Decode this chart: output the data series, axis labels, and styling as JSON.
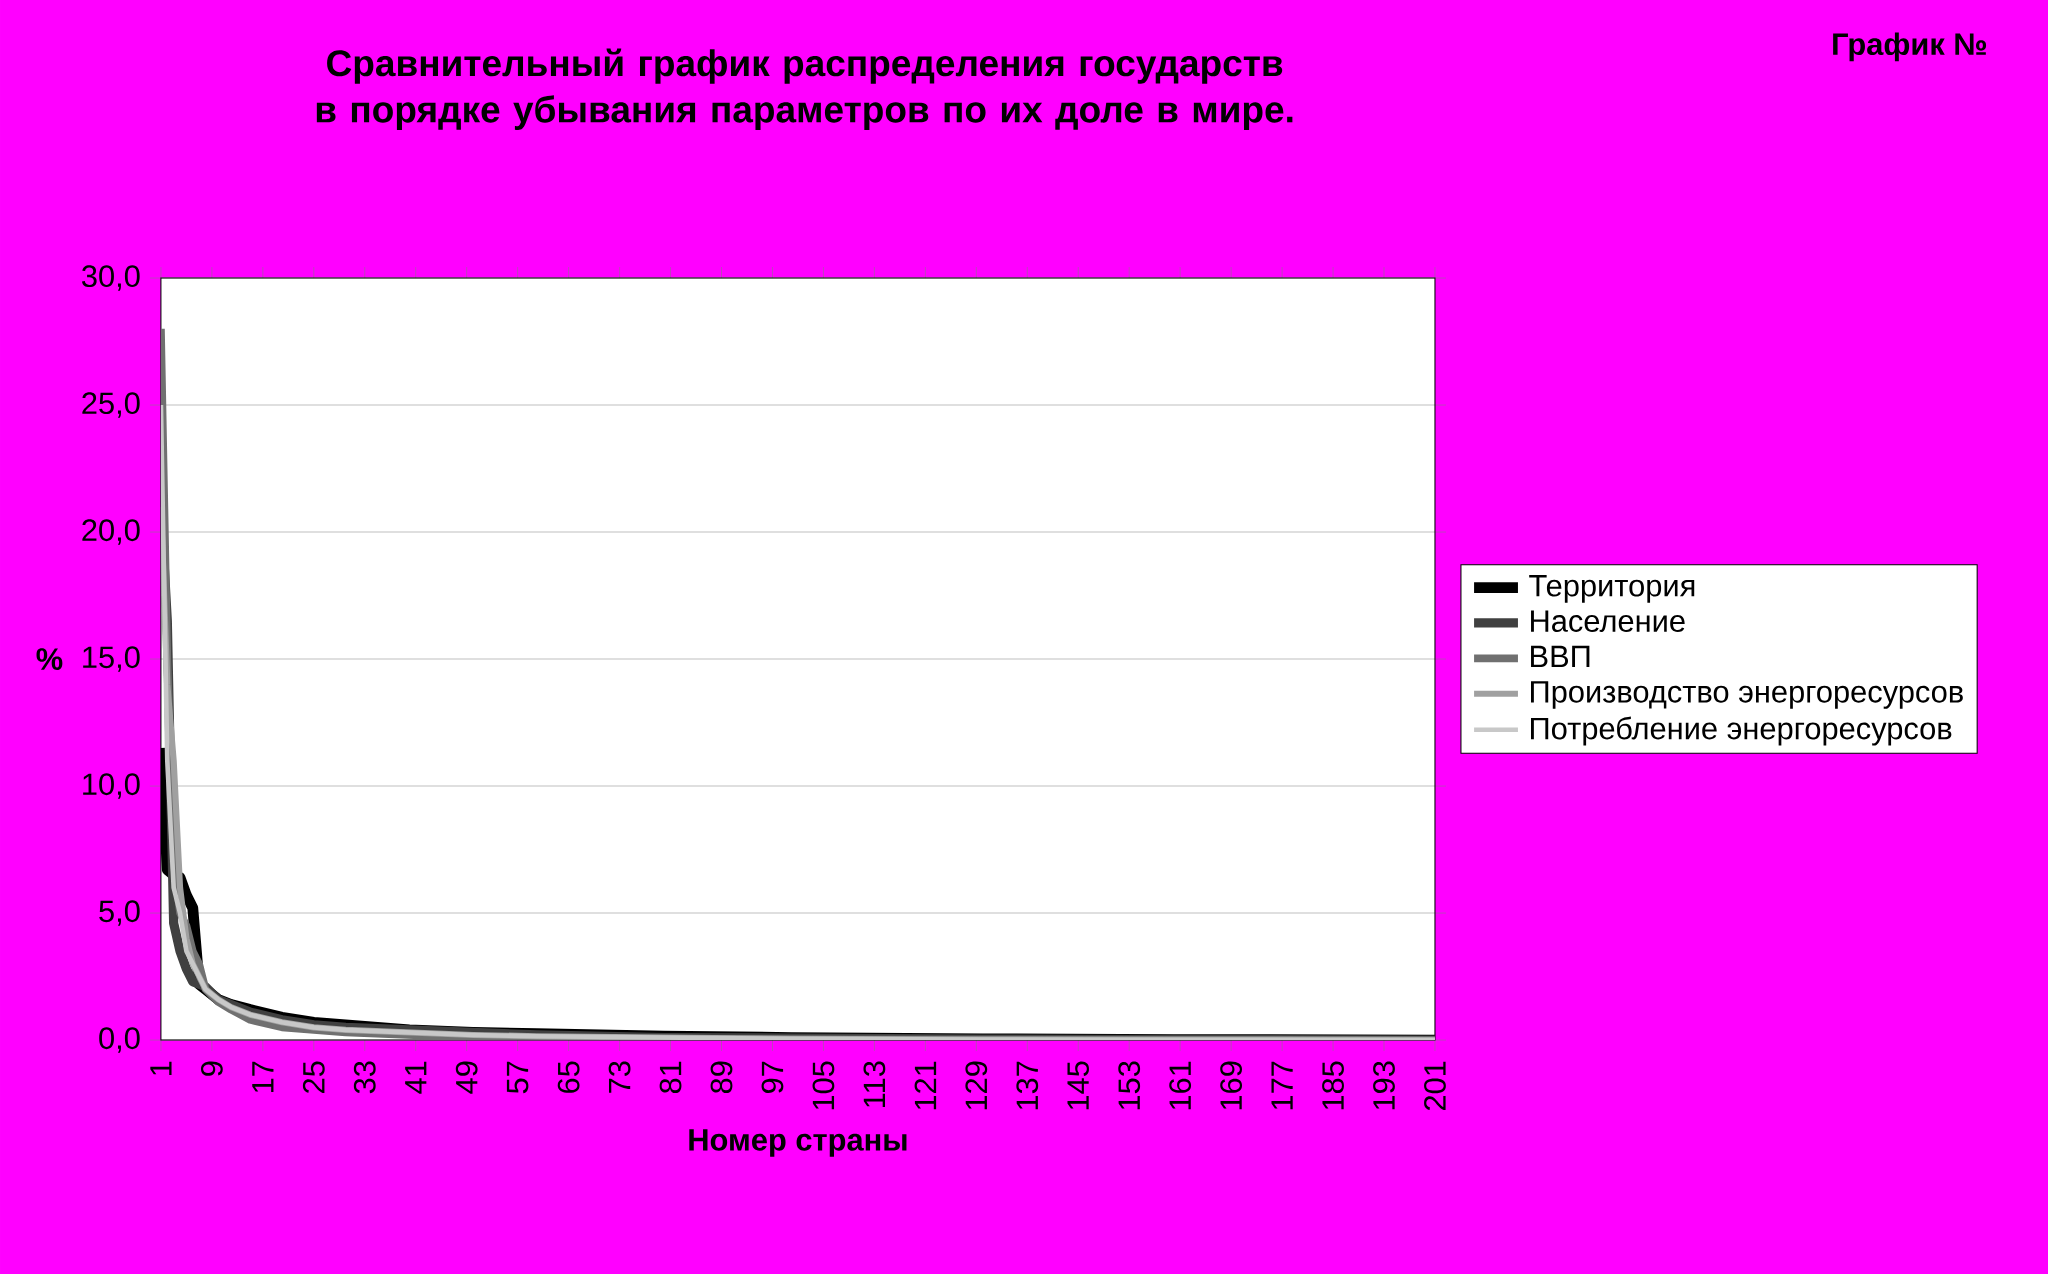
{
  "chart_data": {
    "type": "line",
    "title": "Сравнительный график распределения государств в порядке убывания параметров по их доле в мире.",
    "annotations": [
      "График №"
    ],
    "xlabel": "Номер страны",
    "ylabel": "%",
    "xlim": [
      1,
      201
    ],
    "xticks": [
      1,
      9,
      17,
      25,
      33,
      41,
      49,
      57,
      65,
      73,
      81,
      89,
      97,
      105,
      113,
      121,
      129,
      137,
      145,
      153,
      161,
      169,
      177,
      185,
      193,
      201
    ],
    "ylim": [
      0,
      30
    ],
    "yticks": [
      {
        "value": 0,
        "label": "0,0"
      },
      {
        "value": 5,
        "label": "5,0"
      },
      {
        "value": 10,
        "label": "10,0"
      },
      {
        "value": 15,
        "label": "15,0"
      },
      {
        "value": 20,
        "label": "20,0"
      },
      {
        "value": 25,
        "label": "25,0"
      },
      {
        "value": 30,
        "label": "30,0"
      }
    ],
    "grid": "y",
    "legend": "right",
    "marker": "none",
    "line_style": "solid",
    "x": [
      1,
      2,
      3,
      4,
      5,
      6,
      7,
      8,
      10,
      12,
      15,
      20,
      25,
      30,
      40,
      50,
      60,
      80,
      100,
      130,
      160,
      201
    ],
    "series": [
      {
        "name": "Территория",
        "color": "#000000",
        "values": [
          11.5,
          6.7,
          6.5,
          6.4,
          5.7,
          5.2,
          2.2,
          2.0,
          1.6,
          1.4,
          1.2,
          0.9,
          0.7,
          0.6,
          0.4,
          0.3,
          0.25,
          0.15,
          0.1,
          0.05,
          0.02,
          0.0
        ]
      },
      {
        "name": "Население",
        "color": "#404040",
        "values": [
          21.0,
          16.5,
          4.6,
          3.5,
          2.8,
          2.3,
          2.2,
          2.1,
          1.6,
          1.4,
          1.1,
          0.8,
          0.6,
          0.5,
          0.4,
          0.3,
          0.2,
          0.1,
          0.08,
          0.04,
          0.02,
          0.0
        ]
      },
      {
        "name": "ВВП",
        "color": "#707070",
        "values": [
          28.0,
          15.0,
          7.0,
          5.0,
          4.5,
          3.5,
          3.0,
          2.0,
          1.5,
          1.2,
          0.8,
          0.5,
          0.4,
          0.3,
          0.2,
          0.1,
          0.08,
          0.05,
          0.03,
          0.02,
          0.01,
          0.0
        ]
      },
      {
        "name": "Производство энергоресурсов",
        "color": "#a0a0a0",
        "values": [
          21.0,
          14.0,
          11.0,
          6.0,
          4.0,
          3.0,
          2.5,
          2.0,
          1.6,
          1.3,
          1.0,
          0.7,
          0.5,
          0.4,
          0.3,
          0.2,
          0.15,
          0.1,
          0.05,
          0.02,
          0.01,
          0.0
        ]
      },
      {
        "name": "Потребление энергоресурсов",
        "color": "#c8c8c8",
        "values": [
          25.0,
          11.0,
          6.0,
          5.0,
          3.5,
          3.0,
          2.5,
          2.0,
          1.6,
          1.3,
          1.0,
          0.7,
          0.5,
          0.4,
          0.3,
          0.2,
          0.15,
          0.1,
          0.05,
          0.02,
          0.01,
          0.0
        ]
      }
    ]
  }
}
